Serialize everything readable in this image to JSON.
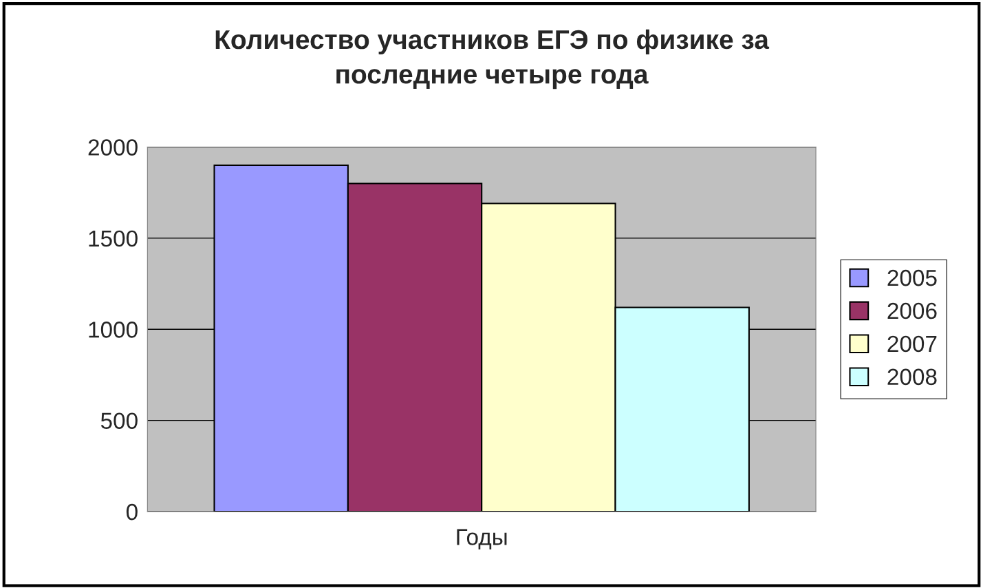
{
  "chart_data": {
    "type": "bar",
    "title": "Количество участников ЕГЭ по физике за\nпоследние четыре года",
    "xlabel": "Годы",
    "categories": [
      null
    ],
    "series": [
      {
        "name": "2005",
        "color": "#9999ff",
        "values": [
          1900
        ]
      },
      {
        "name": "2006",
        "color": "#993366",
        "values": [
          1800
        ]
      },
      {
        "name": "2007",
        "color": "#ffffcc",
        "values": [
          1690
        ]
      },
      {
        "name": "2008",
        "color": "#ccffff",
        "values": [
          1120
        ]
      }
    ],
    "ylim": [
      0,
      2000
    ],
    "yticks": [
      0,
      500,
      1000,
      1500,
      2000
    ],
    "grid": "y",
    "legend": "right"
  }
}
